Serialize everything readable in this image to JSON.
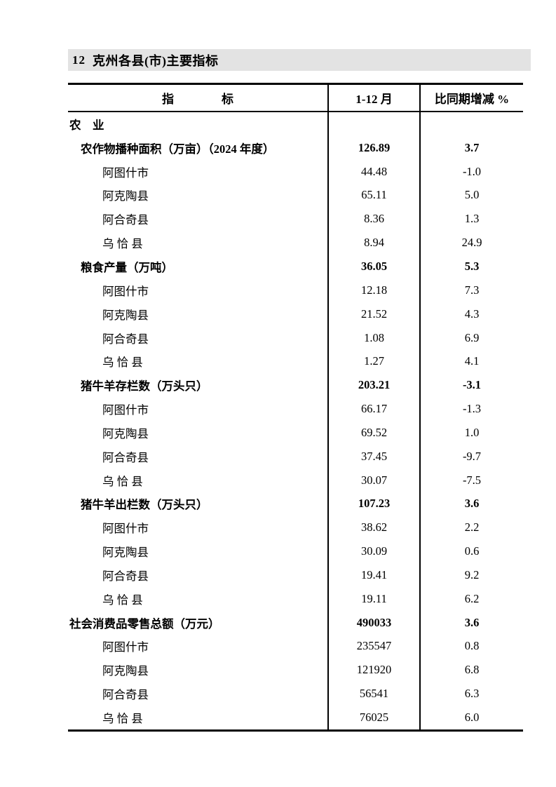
{
  "page_header": {
    "number": "12",
    "title": "克州各县(市)主要指标"
  },
  "table": {
    "columns": {
      "indicator": "指　　　　标",
      "period": "1-12 月",
      "change": "比同期增减 %"
    },
    "rows": [
      {
        "label": "农　业",
        "value": "",
        "change": ""
      },
      {
        "label": "农作物播种面积（万亩）（2024 年度）",
        "value": "126.89",
        "change": "3.7"
      },
      {
        "label": "阿图什市",
        "value": "44.48",
        "change": "-1.0"
      },
      {
        "label": "阿克陶县",
        "value": "65.11",
        "change": "5.0"
      },
      {
        "label": "阿合奇县",
        "value": "8.36",
        "change": "1.3"
      },
      {
        "label": "乌 恰 县",
        "value": "8.94",
        "change": "24.9"
      },
      {
        "label": "粮食产量（万吨）",
        "value": "36.05",
        "change": "5.3"
      },
      {
        "label": "阿图什市",
        "value": "12.18",
        "change": "7.3"
      },
      {
        "label": "阿克陶县",
        "value": "21.52",
        "change": "4.3"
      },
      {
        "label": "阿合奇县",
        "value": "1.08",
        "change": "6.9"
      },
      {
        "label": "乌 恰 县",
        "value": "1.27",
        "change": "4.1"
      },
      {
        "label": "猪牛羊存栏数（万头只）",
        "value": "203.21",
        "change": "-3.1"
      },
      {
        "label": "阿图什市",
        "value": "66.17",
        "change": "-1.3"
      },
      {
        "label": "阿克陶县",
        "value": "69.52",
        "change": "1.0"
      },
      {
        "label": "阿合奇县",
        "value": "37.45",
        "change": "-9.7"
      },
      {
        "label": "乌 恰 县",
        "value": "30.07",
        "change": "-7.5"
      },
      {
        "label": "猪牛羊出栏数（万头只）",
        "value": "107.23",
        "change": "3.6"
      },
      {
        "label": "阿图什市",
        "value": "38.62",
        "change": "2.2"
      },
      {
        "label": "阿克陶县",
        "value": "30.09",
        "change": "0.6"
      },
      {
        "label": "阿合奇县",
        "value": "19.41",
        "change": "9.2"
      },
      {
        "label": "乌 恰 县",
        "value": "19.11",
        "change": "6.2"
      },
      {
        "label": "社会消费品零售总额（万元）",
        "value": "490033",
        "change": "3.6"
      },
      {
        "label": "阿图什市",
        "value": "235547",
        "change": "0.8"
      },
      {
        "label": "阿克陶县",
        "value": "121920",
        "change": "6.8"
      },
      {
        "label": "阿合奇县",
        "value": "56541",
        "change": "6.3"
      },
      {
        "label": "乌 恰 县",
        "value": "76025",
        "change": "6.0"
      }
    ]
  },
  "colors": {
    "title_bar_bg": "#e3e3e3",
    "border": "#000000"
  }
}
